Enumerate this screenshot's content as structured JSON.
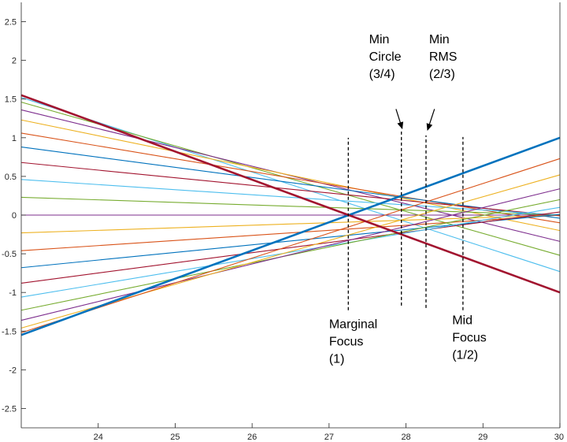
{
  "chart_data": {
    "type": "line",
    "xlim": [
      23,
      30
    ],
    "ylim": [
      -2.75,
      2.75
    ],
    "x_ticks": [
      24,
      25,
      26,
      27,
      28,
      29,
      30
    ],
    "y_ticks": [
      2.5,
      2,
      1.5,
      1,
      0.5,
      0,
      -0.5,
      -1,
      -1.5,
      -2,
      -2.5
    ],
    "x_tick_labels": [
      "24",
      "25",
      "26",
      "27",
      "28",
      "29",
      "30"
    ],
    "y_tick_labels": [
      "2.5",
      "2",
      "1.5",
      "1",
      "0.5",
      "0",
      "-0.5",
      "-1",
      "-1.5",
      "-2",
      "-2.5"
    ],
    "grid": false,
    "series": [
      {
        "color": "#0072BD",
        "x": [
          23,
          30
        ],
        "y": [
          -1.55,
          1.0
        ],
        "emphasis": true
      },
      {
        "color": "#A2142F",
        "x": [
          23,
          30
        ],
        "y": [
          1.55,
          -1.0
        ],
        "emphasis": true
      },
      {
        "color": "#4DBEEE",
        "x": [
          23,
          30
        ],
        "y": [
          1.52,
          -0.73
        ]
      },
      {
        "color": "#77AC30",
        "x": [
          23,
          30
        ],
        "y": [
          1.46,
          -0.52
        ]
      },
      {
        "color": "#7E2F8E",
        "x": [
          23,
          30
        ],
        "y": [
          1.36,
          -0.34
        ]
      },
      {
        "color": "#EDB120",
        "x": [
          23,
          30
        ],
        "y": [
          1.23,
          -0.2
        ]
      },
      {
        "color": "#D95319",
        "x": [
          23,
          30
        ],
        "y": [
          1.06,
          -0.1
        ]
      },
      {
        "color": "#0072BD",
        "x": [
          23,
          30
        ],
        "y": [
          0.88,
          -0.04
        ]
      },
      {
        "color": "#A2142F",
        "x": [
          23,
          30
        ],
        "y": [
          0.68,
          -0.01
        ]
      },
      {
        "color": "#4DBEEE",
        "x": [
          23,
          30
        ],
        "y": [
          0.46,
          0.0
        ]
      },
      {
        "color": "#77AC30",
        "x": [
          23,
          30
        ],
        "y": [
          0.23,
          0.0
        ]
      },
      {
        "color": "#7E2F8E",
        "x": [
          23,
          30
        ],
        "y": [
          0.0,
          0.0
        ]
      },
      {
        "color": "#EDB120",
        "x": [
          23,
          30
        ],
        "y": [
          -0.23,
          0.0
        ]
      },
      {
        "color": "#D95319",
        "x": [
          23,
          30
        ],
        "y": [
          -0.46,
          0.0
        ]
      },
      {
        "color": "#0072BD",
        "x": [
          23,
          30
        ],
        "y": [
          -0.68,
          0.01
        ]
      },
      {
        "color": "#A2142F",
        "x": [
          23,
          30
        ],
        "y": [
          -0.88,
          0.04
        ]
      },
      {
        "color": "#4DBEEE",
        "x": [
          23,
          30
        ],
        "y": [
          -1.06,
          0.1
        ]
      },
      {
        "color": "#77AC30",
        "x": [
          23,
          30
        ],
        "y": [
          -1.23,
          0.2
        ]
      },
      {
        "color": "#7E2F8E",
        "x": [
          23,
          30
        ],
        "y": [
          -1.36,
          0.34
        ]
      },
      {
        "color": "#EDB120",
        "x": [
          23,
          30
        ],
        "y": [
          -1.46,
          0.52
        ]
      },
      {
        "color": "#D95319",
        "x": [
          23,
          30
        ],
        "y": [
          -1.52,
          0.73
        ]
      }
    ],
    "vlines": [
      {
        "x": 27.25,
        "y": [
          -1.23,
          1.0
        ]
      },
      {
        "x": 27.94,
        "y": [
          -1.17,
          1.08
        ]
      },
      {
        "x": 28.26,
        "y": [
          -1.2,
          1.03
        ]
      },
      {
        "x": 28.74,
        "y": [
          -1.23,
          1.01
        ]
      }
    ],
    "annotations": [
      {
        "lines": [
          "Min",
          "Circle",
          "(3/4)"
        ],
        "x": 27.52,
        "y": 2.22,
        "arrow_from": [
          27.87,
          1.37
        ],
        "arrow_to": [
          27.95,
          1.12
        ]
      },
      {
        "lines": [
          "Min",
          "RMS",
          "(2/3)"
        ],
        "x": 28.3,
        "y": 2.22,
        "arrow_from": [
          28.37,
          1.37
        ],
        "arrow_to": [
          28.28,
          1.1
        ]
      },
      {
        "lines": [
          "Marginal",
          "Focus",
          "(1)"
        ],
        "x": 27.0,
        "y": -1.46,
        "arrow_from": null,
        "arrow_to": null
      },
      {
        "lines": [
          "Mid",
          "Focus",
          "(1/2)"
        ],
        "x": 28.6,
        "y": -1.41,
        "arrow_from": null,
        "arrow_to": null
      }
    ]
  }
}
